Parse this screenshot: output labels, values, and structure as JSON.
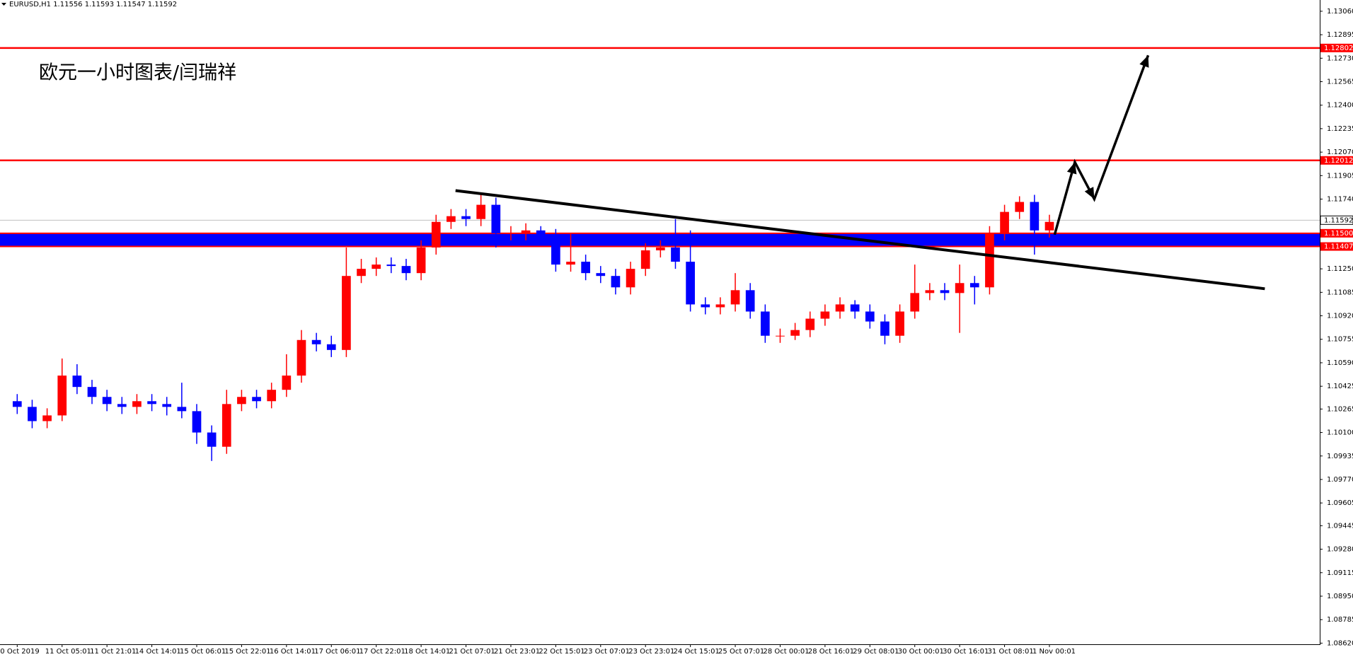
{
  "chart_data": {
    "type": "candlestick",
    "header": "EURUSD,H1  1.11556 1.11593 1.11547 1.11592",
    "annotation": "欧元一小时图表/闫瑞祥",
    "up_color": "#ff0000",
    "down_color": "#0000ff",
    "categories": [
      "0 Oct 2019",
      null,
      null,
      "11 Oct 05:01",
      null,
      null,
      "11 Oct 21:01",
      null,
      null,
      "14 Oct 14:01",
      null,
      null,
      "15 Oct 06:01",
      null,
      null,
      "15 Oct 22:01",
      null,
      null,
      "16 Oct 14:01",
      null,
      null,
      "17 Oct 06:01",
      null,
      null,
      "17 Oct 22:01",
      null,
      null,
      "18 Oct 14:01",
      null,
      null,
      "21 Oct 07:01",
      null,
      null,
      "21 Oct 23:01",
      null,
      null,
      "22 Oct 15:01",
      null,
      null,
      "23 Oct 07:01",
      null,
      null,
      "23 Oct 23:01",
      null,
      null,
      "24 Oct 15:01",
      null,
      null,
      "25 Oct 07:01",
      null,
      null,
      "28 Oct 00:01",
      null,
      null,
      "28 Oct 16:01",
      null,
      null,
      "29 Oct 08:01",
      null,
      null,
      "30 Oct 00:01",
      null,
      null,
      "30 Oct 16:01",
      null,
      null,
      "31 Oct 08:01",
      null,
      null,
      "1 Nov 00:01"
    ],
    "open": [
      1.1032,
      1.1028,
      1.1018,
      1.1022,
      1.105,
      1.1042,
      1.1035,
      1.103,
      1.1028,
      1.1032,
      1.103,
      1.1028,
      1.1025,
      1.101,
      1.1,
      1.103,
      1.1035,
      1.1032,
      1.104,
      1.105,
      1.1075,
      1.1072,
      1.1068,
      1.112,
      1.1125,
      1.1128,
      1.1127,
      1.1122,
      1.114,
      1.1158,
      1.1162,
      1.116,
      1.117,
      1.115,
      1.115,
      1.1152,
      1.1148,
      1.1128,
      1.113,
      1.1122,
      1.112,
      1.1112,
      1.1125,
      1.1138,
      1.114,
      1.113,
      1.11,
      1.1098,
      1.11,
      1.111,
      1.1095,
      1.1078,
      1.1078,
      1.1082,
      1.109,
      1.1095,
      1.11,
      1.1095,
      1.1088,
      1.1078,
      1.1095,
      1.1108,
      1.111,
      1.1108,
      1.1115,
      1.1112,
      1.115,
      1.1165,
      1.1172,
      1.1152
    ],
    "high": [
      1.1037,
      1.1033,
      1.1027,
      1.1062,
      1.1058,
      1.1047,
      1.104,
      1.1035,
      1.1037,
      1.1037,
      1.1035,
      1.1045,
      1.103,
      1.1015,
      1.104,
      1.104,
      1.104,
      1.1045,
      1.1065,
      1.1082,
      1.108,
      1.1078,
      1.114,
      1.1132,
      1.1133,
      1.1133,
      1.1132,
      1.1145,
      1.1163,
      1.1167,
      1.1167,
      1.1178,
      1.1175,
      1.1155,
      1.1157,
      1.1155,
      1.1153,
      1.115,
      1.1135,
      1.1127,
      1.1125,
      1.113,
      1.1143,
      1.1145,
      1.116,
      1.1152,
      1.1105,
      1.1105,
      1.1122,
      1.1115,
      1.11,
      1.1083,
      1.1087,
      1.1095,
      1.11,
      1.1105,
      1.1103,
      1.11,
      1.1093,
      1.11,
      1.1128,
      1.1115,
      1.1115,
      1.1128,
      1.112,
      1.1155,
      1.117,
      1.1176,
      1.1177,
      1.1163
    ],
    "low": [
      1.1023,
      1.1013,
      1.1013,
      1.1018,
      1.1037,
      1.103,
      1.1025,
      1.1023,
      1.1023,
      1.1025,
      1.1022,
      1.102,
      1.1002,
      1.099,
      1.0995,
      1.1025,
      1.1027,
      1.1027,
      1.1035,
      1.1045,
      1.1067,
      1.1063,
      1.1063,
      1.1115,
      1.112,
      1.1122,
      1.1117,
      1.1117,
      1.1135,
      1.1153,
      1.1155,
      1.1155,
      1.114,
      1.1145,
      1.1145,
      1.1143,
      1.1123,
      1.1123,
      1.1117,
      1.1115,
      1.1107,
      1.1107,
      1.112,
      1.1133,
      1.1125,
      1.1095,
      1.1093,
      1.1093,
      1.1095,
      1.109,
      1.1073,
      1.1073,
      1.1075,
      1.1077,
      1.1085,
      1.109,
      1.109,
      1.1083,
      1.1072,
      1.1073,
      1.109,
      1.1103,
      1.1103,
      1.108,
      1.11,
      1.1107,
      1.1145,
      1.116,
      1.1135,
      1.1147
    ],
    "close": [
      1.1028,
      1.1018,
      1.1022,
      1.105,
      1.1042,
      1.1035,
      1.103,
      1.1028,
      1.1032,
      1.103,
      1.1028,
      1.1025,
      1.101,
      1.1,
      1.103,
      1.1035,
      1.1032,
      1.104,
      1.105,
      1.1075,
      1.1072,
      1.1068,
      1.112,
      1.1125,
      1.1128,
      1.1127,
      1.1122,
      1.114,
      1.1158,
      1.1162,
      1.116,
      1.117,
      1.115,
      1.115,
      1.1152,
      1.1148,
      1.1128,
      1.113,
      1.1122,
      1.112,
      1.1112,
      1.1125,
      1.1138,
      1.114,
      1.113,
      1.11,
      1.1098,
      1.11,
      1.111,
      1.1095,
      1.1078,
      1.1078,
      1.1082,
      1.109,
      1.1095,
      1.11,
      1.1095,
      1.1088,
      1.1078,
      1.1095,
      1.1108,
      1.111,
      1.1108,
      1.1115,
      1.1112,
      1.115,
      1.1165,
      1.1172,
      1.1152,
      1.1158
    ],
    "xlim": [
      -1.15,
      87.07
    ],
    "ylim": [
      1.08612,
      1.13139
    ],
    "yticks": [
      {
        "value": 1.1306,
        "label": "1.13060"
      },
      1.12895,
      {
        "value": 1.1273,
        "label": "1.12730"
      },
      1.12565,
      {
        "value": 1.124,
        "label": "1.12400"
      },
      1.12235,
      {
        "value": 1.1207,
        "label": "1.12070"
      },
      1.11905,
      {
        "value": 1.1174,
        "label": "1.11740"
      },
      {
        "value": 1.1125,
        "label": "1.11250"
      },
      1.11085,
      {
        "value": 1.1092,
        "label": "1.10920"
      },
      1.10755,
      {
        "value": 1.1059,
        "label": "1.10590"
      },
      1.10425,
      1.10265,
      {
        "value": 1.101,
        "label": "1.10100"
      },
      1.09935,
      {
        "value": 1.0977,
        "label": "1.09770"
      },
      1.09605,
      1.09445,
      {
        "value": 1.0928,
        "label": "1.09280"
      },
      1.09115,
      {
        "value": 1.0895,
        "label": "1.08950"
      },
      1.08785,
      {
        "value": 1.0862,
        "label": "1.08620"
      }
    ],
    "hlines": [
      {
        "value": 1.12802,
        "color": "#ff0000"
      },
      {
        "value": 1.12012,
        "color": "#ff0000"
      },
      {
        "value": 1.11592,
        "color": "#c0c0c0"
      }
    ],
    "zone": {
      "from": 1.11407,
      "to": {
        "value": 1.115,
        "label": "1.11500"
      },
      "color": "#0000ff",
      "edge_color": "#ff0000"
    },
    "trendline": {
      "x": [
        29.3,
        83.4
      ],
      "y": [
        1.118,
        1.1111
      ],
      "color": "#000000"
    },
    "arrow": {
      "x": [
        69.35,
        70.7,
        72.0,
        75.6
      ],
      "y": [
        1.1149,
        1.12,
        1.1174,
        1.1275
      ],
      "color": "#000000"
    }
  }
}
